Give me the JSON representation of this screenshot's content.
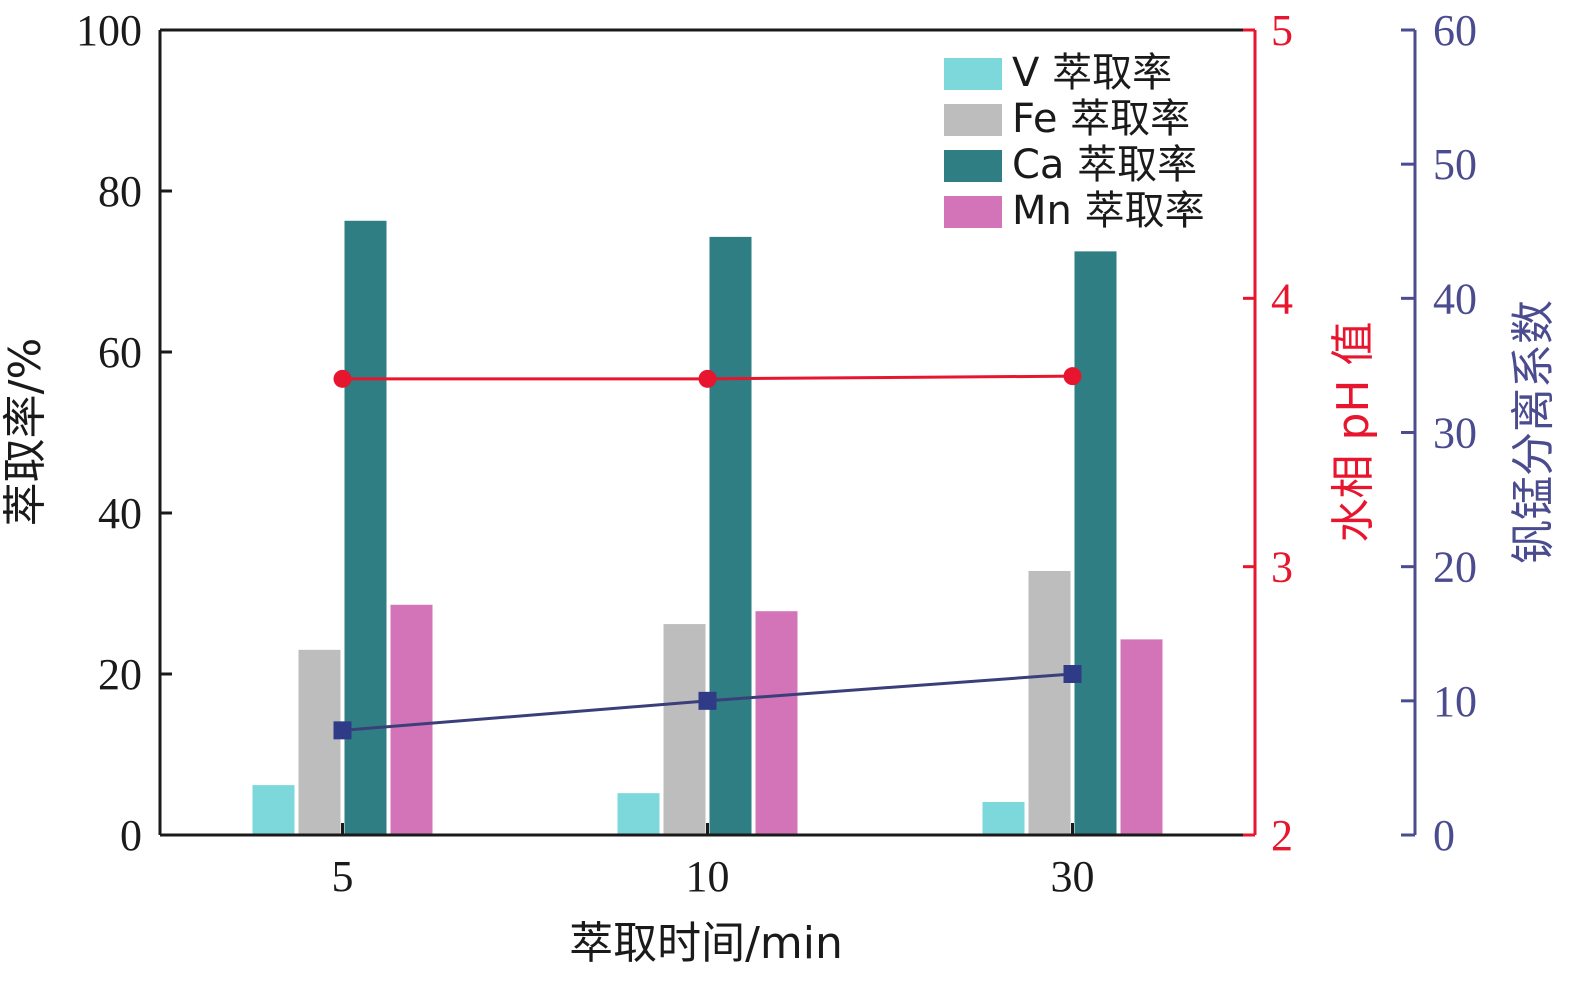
{
  "chart_data": {
    "type": "bar",
    "categories": [
      "5",
      "10",
      "30"
    ],
    "xlabel": "萃取时间/min",
    "ylabel": "萃取率/%",
    "ylim": [
      0,
      100
    ],
    "yticks": [
      "0",
      "20",
      "40",
      "60",
      "80",
      "100"
    ],
    "series": [
      {
        "name": "V 萃取率",
        "values": [
          6.2,
          5.2,
          4.1
        ],
        "color": "#7dd8dc"
      },
      {
        "name": "Fe 萃取率",
        "values": [
          23.0,
          26.2,
          32.8
        ],
        "color": "#bdbdbd"
      },
      {
        "name": "Ca 萃取率",
        "values": [
          76.3,
          74.3,
          72.5
        ],
        "color": "#2e7e84"
      },
      {
        "name": "Mn 萃取率",
        "values": [
          28.6,
          27.8,
          24.3
        ],
        "color": "#d474b8"
      }
    ],
    "line_series": [
      {
        "axis": "ph",
        "values": [
          3.7,
          3.7,
          3.71
        ],
        "color": "#e8152e",
        "marker": "circle"
      },
      {
        "axis": "sep",
        "values": [
          7.8,
          10.0,
          12.0
        ],
        "color": "#2f3b86",
        "line_color": "#3a3f7a",
        "marker": "square"
      }
    ],
    "ph_axis": {
      "label": "水相 pH 值",
      "range": [
        2,
        5
      ],
      "ticks": [
        "2",
        "3",
        "4",
        "5"
      ],
      "color": "#e8152e"
    },
    "sep_axis": {
      "label": "钒锰分离系数",
      "range": [
        0,
        60
      ],
      "ticks": [
        "0",
        "10",
        "20",
        "30",
        "40",
        "50",
        "60"
      ],
      "color": "#4b4b8f"
    },
    "grid": false,
    "legend_position": "top-right"
  }
}
